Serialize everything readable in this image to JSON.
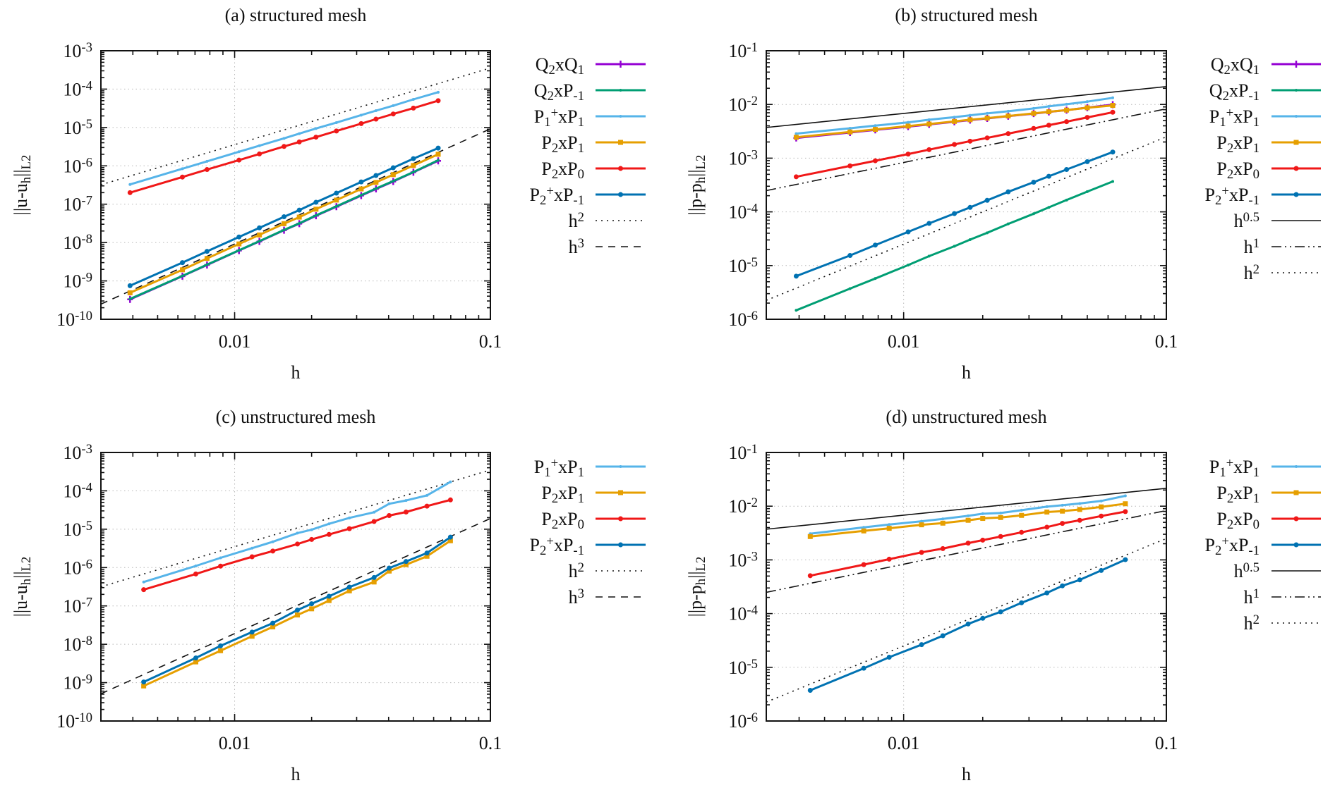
{
  "figure": {
    "type": "four-panel convergence plot"
  },
  "styles": {
    "Q2xQ1": {
      "color": "#9400D3",
      "marker": "plus",
      "dash": ""
    },
    "Q2xP-1": {
      "color": "#009E73",
      "marker": "dot-small",
      "dash": ""
    },
    "P1+xP1": {
      "color": "#56B4E9",
      "marker": "dot-small",
      "dash": ""
    },
    "P2xP1": {
      "color": "#E69F00",
      "marker": "square",
      "dash": ""
    },
    "P2xP0": {
      "color": "#F01818",
      "marker": "dot",
      "dash": ""
    },
    "P2+xP-1": {
      "color": "#0072B2",
      "marker": "dot",
      "dash": ""
    },
    "h0.5": {
      "color": "#111111",
      "dash": "solid"
    },
    "h1": {
      "color": "#111111",
      "dash": "dashdotdot"
    },
    "h2": {
      "color": "#111111",
      "dash": "dotted"
    },
    "h3": {
      "color": "#111111",
      "dash": "dashed"
    }
  },
  "chart_data": [
    {
      "id": "a",
      "type": "line",
      "title": "(a) structured mesh",
      "xlabel": "h",
      "ylabel": {
        "base": "||u-u",
        "sub1": "h",
        "mid": "||",
        "sub2": "L",
        "sub3": "2"
      },
      "xscale": "log",
      "yscale": "log",
      "xlim": [
        0.003,
        0.1
      ],
      "ylim": [
        1e-10,
        0.001
      ],
      "xticks": [
        {
          "v": 0.01,
          "label": "0.01"
        },
        {
          "v": 0.1,
          "label": "0.1"
        }
      ],
      "yticks": [
        {
          "v": 0.001,
          "exp": "-3"
        },
        {
          "v": 0.0001,
          "exp": "-4"
        },
        {
          "v": 1e-05,
          "exp": "-5"
        },
        {
          "v": 1e-06,
          "exp": "-6"
        },
        {
          "v": 1e-07,
          "exp": "-7"
        },
        {
          "v": 1e-08,
          "exp": "-8"
        },
        {
          "v": 1e-09,
          "exp": "-9"
        },
        {
          "v": 1e-10,
          "exp": "-10"
        }
      ],
      "grid": true,
      "legend_position": "outside-right",
      "x": [
        0.0039,
        0.00625,
        0.0078,
        0.0104,
        0.0125,
        0.0156,
        0.0179,
        0.0208,
        0.025,
        0.03125,
        0.0357,
        0.0417,
        0.05,
        0.0625
      ],
      "series": [
        {
          "key": "Q2xQ1",
          "legend": {
            "a": "Q",
            "as": "2",
            "b": "xQ",
            "bs": "1",
            "sup": "",
            "bsup": ""
          },
          "values": [
            3.3e-10,
            1.33e-09,
            2.6e-09,
            6.2e-09,
            1.07e-08,
            2.1e-08,
            3.1e-08,
            5e-08,
            8.6e-08,
            1.68e-07,
            2.5e-07,
            3.9e-07,
            6.8e-07,
            1.35e-06
          ]
        },
        {
          "key": "Q2xP-1",
          "legend": {
            "a": "Q",
            "as": "2",
            "b": "xP",
            "bs": "-1",
            "sup": "",
            "bsup": ""
          },
          "values": [
            3.4e-10,
            1.35e-09,
            2.65e-09,
            6.3e-09,
            1.09e-08,
            2.13e-08,
            3.17e-08,
            5.1e-08,
            8.8e-08,
            1.72e-07,
            2.56e-07,
            4e-07,
            6.9e-07,
            1.4e-06
          ]
        },
        {
          "key": "P1+xP1",
          "legend": {
            "a": "P",
            "as": "1",
            "b": "xP",
            "bs": "1",
            "sup": "+",
            "bsup": ""
          },
          "values": [
            3.27e-07,
            8.4e-07,
            1.31e-06,
            2.33e-06,
            3.35e-06,
            5.2e-06,
            6.9e-06,
            9.4e-06,
            1.34e-05,
            2.1e-05,
            2.74e-05,
            3.7e-05,
            5.4e-05,
            8.3e-05
          ]
        },
        {
          "key": "P2xP1",
          "legend": {
            "a": "P",
            "as": "2",
            "b": "xP",
            "bs": "1",
            "sup": "",
            "bsup": ""
          },
          "values": [
            4.9e-10,
            1.95e-09,
            3.85e-09,
            9.2e-09,
            1.58e-08,
            3.1e-08,
            4.6e-08,
            7.4e-08,
            1.28e-07,
            2.5e-07,
            3.7e-07,
            5.9e-07,
            1.02e-06,
            2e-06
          ]
        },
        {
          "key": "P2xP0",
          "legend": {
            "a": "P",
            "as": "2",
            "b": "xP",
            "bs": "0",
            "sup": "",
            "bsup": ""
          },
          "values": [
            2e-07,
            5.1e-07,
            8e-07,
            1.41e-06,
            2.04e-06,
            3.2e-06,
            4.2e-06,
            5.6e-06,
            8.1e-06,
            1.26e-05,
            1.65e-05,
            2.25e-05,
            3.2e-05,
            5e-05
          ]
        },
        {
          "key": "P2+xP-1",
          "legend": {
            "a": "P",
            "as": "2",
            "b": "xP",
            "bs": "-1",
            "sup": "+",
            "bsup": ""
          },
          "values": [
            7.5e-10,
            3e-09,
            5.9e-09,
            1.4e-08,
            2.42e-08,
            4.7e-08,
            7e-08,
            1.12e-07,
            1.94e-07,
            3.8e-07,
            5.6e-07,
            8.9e-07,
            1.54e-06,
            2.9e-06
          ]
        }
      ],
      "references": [
        {
          "key": "h2",
          "order": 2,
          "coef": 0.0356,
          "legend": {
            "a": "h",
            "sup": "2"
          }
        },
        {
          "key": "h3",
          "order": 3,
          "coef": 0.0092,
          "legend": {
            "a": "h",
            "sup": "3"
          }
        }
      ]
    },
    {
      "id": "b",
      "type": "line",
      "title": "(b) structured mesh",
      "xlabel": "h",
      "ylabel": {
        "base": "||p-p",
        "sub1": "h",
        "mid": "||",
        "sub2": "L",
        "sub3": "2"
      },
      "xscale": "log",
      "yscale": "log",
      "xlim": [
        0.003,
        0.1
      ],
      "ylim": [
        1e-06,
        0.1
      ],
      "xticks": [
        {
          "v": 0.01,
          "label": "0.01"
        },
        {
          "v": 0.1,
          "label": "0.1"
        }
      ],
      "yticks": [
        {
          "v": 0.1,
          "exp": "-1"
        },
        {
          "v": 0.01,
          "exp": "-2"
        },
        {
          "v": 0.001,
          "exp": "-3"
        },
        {
          "v": 0.0001,
          "exp": "-4"
        },
        {
          "v": 1e-05,
          "exp": "-5"
        },
        {
          "v": 1e-06,
          "exp": "-6"
        }
      ],
      "grid": true,
      "legend_position": "outside-right",
      "x": [
        0.0039,
        0.00625,
        0.0078,
        0.0104,
        0.0125,
        0.0156,
        0.0179,
        0.0208,
        0.025,
        0.03125,
        0.0357,
        0.0417,
        0.05,
        0.0625
      ],
      "series": [
        {
          "key": "Q2xQ1",
          "legend": {
            "a": "Q",
            "as": "2",
            "b": "xQ",
            "bs": "1",
            "sup": "",
            "bsup": ""
          },
          "values": [
            0.00238,
            0.003,
            0.00336,
            0.00387,
            0.00425,
            0.00476,
            0.00512,
            0.0055,
            0.00605,
            0.00676,
            0.00728,
            0.00785,
            0.0087,
            0.0099
          ]
        },
        {
          "key": "Q2xP-1",
          "legend": {
            "a": "Q",
            "as": "2",
            "b": "xP",
            "bs": "-1",
            "sup": "",
            "bsup": ""
          },
          "values": [
            1.47e-06,
            3.72e-06,
            5.74e-06,
            1.02e-05,
            1.5e-05,
            2.29e-05,
            3.04e-05,
            4.07e-05,
            5.97e-05,
            9.22e-05,
            0.000121,
            0.000166,
            0.000238,
            0.000368
          ]
        },
        {
          "key": "P1+xP1",
          "legend": {
            "a": "P",
            "as": "1",
            "b": "xP",
            "bs": "1",
            "sup": "+",
            "bsup": ""
          },
          "values": [
            0.00286,
            0.0036,
            0.00403,
            0.00464,
            0.00519,
            0.0058,
            0.00628,
            0.00681,
            0.00746,
            0.00842,
            0.00922,
            0.0101,
            0.0113,
            0.0133
          ]
        },
        {
          "key": "P2xP1",
          "legend": {
            "a": "P",
            "as": "2",
            "b": "xP",
            "bs": "1",
            "sup": "",
            "bsup": ""
          },
          "values": [
            0.00245,
            0.00307,
            0.00343,
            0.00395,
            0.00432,
            0.00483,
            0.00519,
            0.00557,
            0.0061,
            0.00681,
            0.00731,
            0.00785,
            0.00868,
            0.0096
          ]
        },
        {
          "key": "P2xP0",
          "legend": {
            "a": "P",
            "as": "2",
            "b": "xP",
            "bs": "0",
            "sup": "",
            "bsup": ""
          },
          "values": [
            0.00045,
            0.000717,
            0.000895,
            0.00119,
            0.00144,
            0.0018,
            0.00207,
            0.00238,
            0.00286,
            0.00357,
            0.00411,
            0.00478,
            0.00574,
            0.00716
          ]
        },
        {
          "key": "P2+xP-1",
          "legend": {
            "a": "P",
            "as": "2",
            "b": "xP",
            "bs": "-1",
            "sup": "+",
            "bsup": ""
          },
          "values": [
            6.35e-06,
            1.54e-05,
            2.41e-05,
            4.24e-05,
            6.1e-05,
            9.31e-05,
            0.000121,
            0.000164,
            0.000236,
            0.000357,
            0.00046,
            0.000615,
            0.000859,
            0.0013
          ]
        }
      ],
      "references": [
        {
          "key": "h0.5",
          "order": 0.5,
          "coef": 0.068,
          "legend": {
            "a": "h",
            "sup": "0.5"
          }
        },
        {
          "key": "h1",
          "order": 1,
          "coef": 0.083,
          "legend": {
            "a": "h",
            "sup": "1"
          }
        },
        {
          "key": "h2",
          "order": 2,
          "coef": 0.25,
          "legend": {
            "a": "h",
            "sup": "2"
          }
        }
      ]
    },
    {
      "id": "c",
      "type": "line",
      "title": "(c) unstructured mesh",
      "xlabel": "h",
      "ylabel": {
        "base": "||u-u",
        "sub1": "h",
        "mid": "||",
        "sub2": "L",
        "sub3": "2"
      },
      "xscale": "log",
      "yscale": "log",
      "xlim": [
        0.003,
        0.1
      ],
      "ylim": [
        1e-10,
        0.001
      ],
      "xticks": [
        {
          "v": 0.01,
          "label": "0.01"
        },
        {
          "v": 0.1,
          "label": "0.1"
        }
      ],
      "yticks": [
        {
          "v": 0.001,
          "exp": "-3"
        },
        {
          "v": 0.0001,
          "exp": "-4"
        },
        {
          "v": 1e-05,
          "exp": "-5"
        },
        {
          "v": 1e-06,
          "exp": "-6"
        },
        {
          "v": 1e-07,
          "exp": "-7"
        },
        {
          "v": 1e-08,
          "exp": "-8"
        },
        {
          "v": 1e-09,
          "exp": "-9"
        },
        {
          "v": 1e-10,
          "exp": "-10"
        }
      ],
      "grid": true,
      "legend_position": "outside-right",
      "x": [
        0.00441,
        0.00705,
        0.00881,
        0.0117,
        0.0141,
        0.0176,
        0.02,
        0.0234,
        0.0281,
        0.0351,
        0.0402,
        0.0468,
        0.0565,
        0.0698
      ],
      "series": [
        {
          "key": "P1+xP1",
          "legend": {
            "a": "P",
            "as": "1",
            "b": "xP",
            "bs": "1",
            "sup": "+",
            "bsup": ""
          },
          "values": [
            4.2e-07,
            1.1e-06,
            1.79e-06,
            3.2e-06,
            4.7e-06,
            7.9e-06,
            9.7e-06,
            1.38e-05,
            1.97e-05,
            2.77e-05,
            4.6e-05,
            5.6e-05,
            7.6e-05,
            0.000171
          ]
        },
        {
          "key": "P2xP1",
          "legend": {
            "a": "P",
            "as": "2",
            "b": "xP",
            "bs": "1",
            "sup": "",
            "bsup": ""
          },
          "values": [
            8.2e-10,
            3.47e-09,
            6.8e-09,
            1.62e-08,
            2.84e-08,
            5.8e-08,
            8.4e-08,
            1.38e-07,
            2.47e-07,
            4.2e-07,
            8.1e-07,
            1.19e-06,
            1.97e-06,
            5e-06
          ]
        },
        {
          "key": "P2xP0",
          "legend": {
            "a": "P",
            "as": "2",
            "b": "xP",
            "bs": "0",
            "sup": "",
            "bsup": ""
          },
          "values": [
            2.65e-07,
            6.8e-07,
            1.09e-06,
            1.91e-06,
            2.69e-06,
            4.1e-06,
            5.4e-06,
            7.3e-06,
            1.03e-05,
            1.59e-05,
            2.27e-05,
            2.8e-05,
            4e-05,
            5.8e-05
          ]
        },
        {
          "key": "P2+xP-1",
          "legend": {
            "a": "P",
            "as": "2",
            "b": "xP",
            "bs": "-1",
            "sup": "+",
            "bsup": ""
          },
          "values": [
            1.04e-09,
            4.4e-09,
            9.1e-09,
            2.08e-08,
            3.56e-08,
            7.8e-08,
            1.14e-07,
            1.79e-07,
            3.1e-07,
            5.5e-07,
            9.7e-07,
            1.44e-06,
            2.4e-06,
            6.2e-06
          ]
        }
      ],
      "references": [
        {
          "key": "h2",
          "order": 2,
          "coef": 0.035,
          "legend": {
            "a": "h",
            "sup": "2"
          }
        },
        {
          "key": "h3",
          "order": 3,
          "coef": 0.019,
          "legend": {
            "a": "h",
            "sup": "3"
          }
        }
      ]
    },
    {
      "id": "d",
      "type": "line",
      "title": "(d) unstructured mesh",
      "xlabel": "h",
      "ylabel": {
        "base": "||p-p",
        "sub1": "h",
        "mid": "||",
        "sub2": "L",
        "sub3": "2"
      },
      "xscale": "log",
      "yscale": "log",
      "xlim": [
        0.003,
        0.1
      ],
      "ylim": [
        1e-06,
        0.1
      ],
      "xticks": [
        {
          "v": 0.01,
          "label": "0.01"
        },
        {
          "v": 0.1,
          "label": "0.1"
        }
      ],
      "yticks": [
        {
          "v": 0.1,
          "exp": "-1"
        },
        {
          "v": 0.01,
          "exp": "-2"
        },
        {
          "v": 0.001,
          "exp": "-3"
        },
        {
          "v": 0.0001,
          "exp": "-4"
        },
        {
          "v": 1e-05,
          "exp": "-5"
        },
        {
          "v": 1e-06,
          "exp": "-6"
        }
      ],
      "grid": true,
      "legend_position": "outside-right",
      "x": [
        0.00441,
        0.00705,
        0.00881,
        0.0117,
        0.0141,
        0.0176,
        0.02,
        0.0234,
        0.0281,
        0.0351,
        0.0402,
        0.0468,
        0.0565,
        0.0698
      ],
      "series": [
        {
          "key": "P1+xP1",
          "legend": {
            "a": "P",
            "as": "1",
            "b": "xP",
            "bs": "1",
            "sup": "+",
            "bsup": ""
          },
          "values": [
            0.00307,
            0.00403,
            0.00455,
            0.00524,
            0.00579,
            0.00661,
            0.00724,
            0.00746,
            0.00842,
            0.0098,
            0.0104,
            0.0112,
            0.0125,
            0.0156
          ]
        },
        {
          "key": "P2xP1",
          "legend": {
            "a": "P",
            "as": "2",
            "b": "xP",
            "bs": "1",
            "sup": "",
            "bsup": ""
          },
          "values": [
            0.00272,
            0.00346,
            0.00387,
            0.0045,
            0.00483,
            0.00546,
            0.00592,
            0.00615,
            0.00674,
            0.00777,
            0.00809,
            0.00868,
            0.0097,
            0.0111
          ]
        },
        {
          "key": "P2xP0",
          "legend": {
            "a": "P",
            "as": "2",
            "b": "xP",
            "bs": "0",
            "sup": "",
            "bsup": ""
          },
          "values": [
            0.000508,
            0.000817,
            0.00103,
            0.00138,
            0.00162,
            0.00205,
            0.00233,
            0.00272,
            0.00326,
            0.00407,
            0.00478,
            0.00546,
            0.00655,
            0.00793
          ]
        },
        {
          "key": "P2+xP-1",
          "legend": {
            "a": "P",
            "as": "2",
            "b": "xP",
            "bs": "-1",
            "sup": "+",
            "bsup": ""
          },
          "values": [
            3.72e-06,
            9.6e-06,
            1.54e-05,
            2.64e-05,
            3.87e-05,
            6.41e-05,
            8.17e-05,
            0.000108,
            0.000159,
            0.000243,
            0.000329,
            0.000424,
            0.000635,
            0.00101
          ]
        }
      ],
      "references": [
        {
          "key": "h0.5",
          "order": 0.5,
          "coef": 0.068,
          "legend": {
            "a": "h",
            "sup": "0.5"
          }
        },
        {
          "key": "h1",
          "order": 1,
          "coef": 0.083,
          "legend": {
            "a": "h",
            "sup": "1"
          }
        },
        {
          "key": "h2",
          "order": 2,
          "coef": 0.25,
          "legend": {
            "a": "h",
            "sup": "2"
          }
        }
      ]
    }
  ]
}
